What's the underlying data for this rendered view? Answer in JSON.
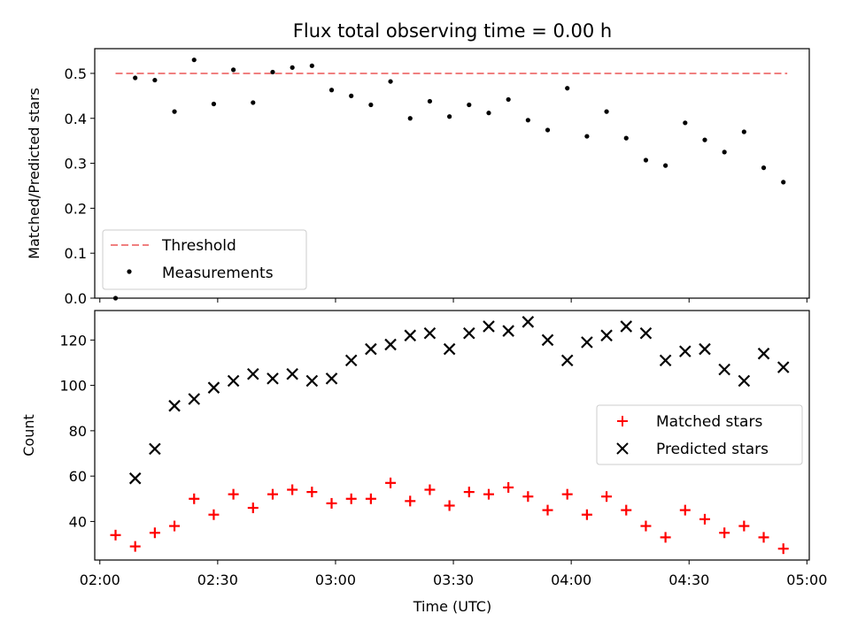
{
  "chart_data": [
    {
      "type": "scatter",
      "title": "Flux total observing time = 0.00 h",
      "xlabel": "",
      "ylabel": "Matched/Predicted stars",
      "ylim": [
        0,
        0.555
      ],
      "yticks": [
        "0.0",
        "0.1",
        "0.2",
        "0.3",
        "0.4",
        "0.5"
      ],
      "xlim": [
        "02:00",
        "05:00"
      ],
      "legend_position": "lower-left",
      "series": [
        {
          "name": "Threshold",
          "style": "dashed-line",
          "color": "#f08080",
          "x": [
            "02:04",
            "04:55"
          ],
          "y": [
            0.5,
            0.5
          ]
        },
        {
          "name": "Measurements",
          "style": "dot",
          "color": "#000000",
          "x": [
            "02:04",
            "02:09",
            "02:14",
            "02:19",
            "02:24",
            "02:29",
            "02:34",
            "02:39",
            "02:44",
            "02:49",
            "02:54",
            "02:59",
            "03:04",
            "03:09",
            "03:14",
            "03:19",
            "03:24",
            "03:29",
            "03:34",
            "03:39",
            "03:44",
            "03:49",
            "03:54",
            "03:59",
            "04:04",
            "04:09",
            "04:14",
            "04:19",
            "04:24",
            "04:29",
            "04:34",
            "04:39",
            "04:44",
            "04:49",
            "04:54"
          ],
          "y": [
            0.0,
            0.49,
            0.485,
            0.415,
            0.53,
            0.432,
            0.508,
            0.435,
            0.503,
            0.513,
            0.517,
            0.463,
            0.45,
            0.43,
            0.482,
            0.4,
            0.438,
            0.404,
            0.43,
            0.412,
            0.442,
            0.396,
            0.374,
            0.467,
            0.36,
            0.415,
            0.356,
            0.307,
            0.295,
            0.39,
            0.352,
            0.325,
            0.37,
            0.29,
            0.258
          ]
        }
      ]
    },
    {
      "type": "scatter",
      "title": "",
      "xlabel": "Time (UTC)",
      "ylabel": "Count",
      "ylim": [
        23,
        133
      ],
      "yticks": [
        "40",
        "60",
        "80",
        "100",
        "120"
      ],
      "xlim": [
        "02:00",
        "05:00"
      ],
      "xticks": [
        "02:00",
        "02:30",
        "03:00",
        "03:30",
        "04:00",
        "04:30",
        "05:00"
      ],
      "legend_position": "center-right",
      "series": [
        {
          "name": "Matched stars",
          "style": "plus",
          "color": "#ff0000",
          "x": [
            "02:04",
            "02:09",
            "02:14",
            "02:19",
            "02:24",
            "02:29",
            "02:34",
            "02:39",
            "02:44",
            "02:49",
            "02:54",
            "02:59",
            "03:04",
            "03:09",
            "03:14",
            "03:19",
            "03:24",
            "03:29",
            "03:34",
            "03:39",
            "03:44",
            "03:49",
            "03:54",
            "03:59",
            "04:04",
            "04:09",
            "04:14",
            "04:19",
            "04:24",
            "04:29",
            "04:34",
            "04:39",
            "04:44",
            "04:49",
            "04:54"
          ],
          "y": [
            34,
            29,
            35,
            38,
            50,
            43,
            52,
            46,
            52,
            54,
            53,
            48,
            50,
            50,
            57,
            49,
            54,
            47,
            53,
            52,
            55,
            51,
            45,
            52,
            43,
            51,
            45,
            38,
            33,
            45,
            41,
            35,
            38,
            33,
            28
          ]
        },
        {
          "name": "Predicted stars",
          "style": "x",
          "color": "#000000",
          "x": [
            "02:09",
            "02:14",
            "02:19",
            "02:24",
            "02:29",
            "02:34",
            "02:39",
            "02:44",
            "02:49",
            "02:54",
            "02:59",
            "03:04",
            "03:09",
            "03:14",
            "03:19",
            "03:24",
            "03:29",
            "03:34",
            "03:39",
            "03:44",
            "03:49",
            "03:54",
            "03:59",
            "04:04",
            "04:09",
            "04:14",
            "04:19",
            "04:24",
            "04:29",
            "04:34",
            "04:39",
            "04:44",
            "04:49",
            "04:54"
          ],
          "y": [
            59,
            72,
            91,
            94,
            99,
            102,
            105,
            103,
            105,
            102,
            103,
            111,
            116,
            118,
            122,
            123,
            116,
            123,
            126,
            124,
            128,
            120,
            111,
            119,
            122,
            126,
            123,
            111,
            115,
            116,
            107,
            102,
            114,
            108
          ]
        }
      ]
    }
  ]
}
